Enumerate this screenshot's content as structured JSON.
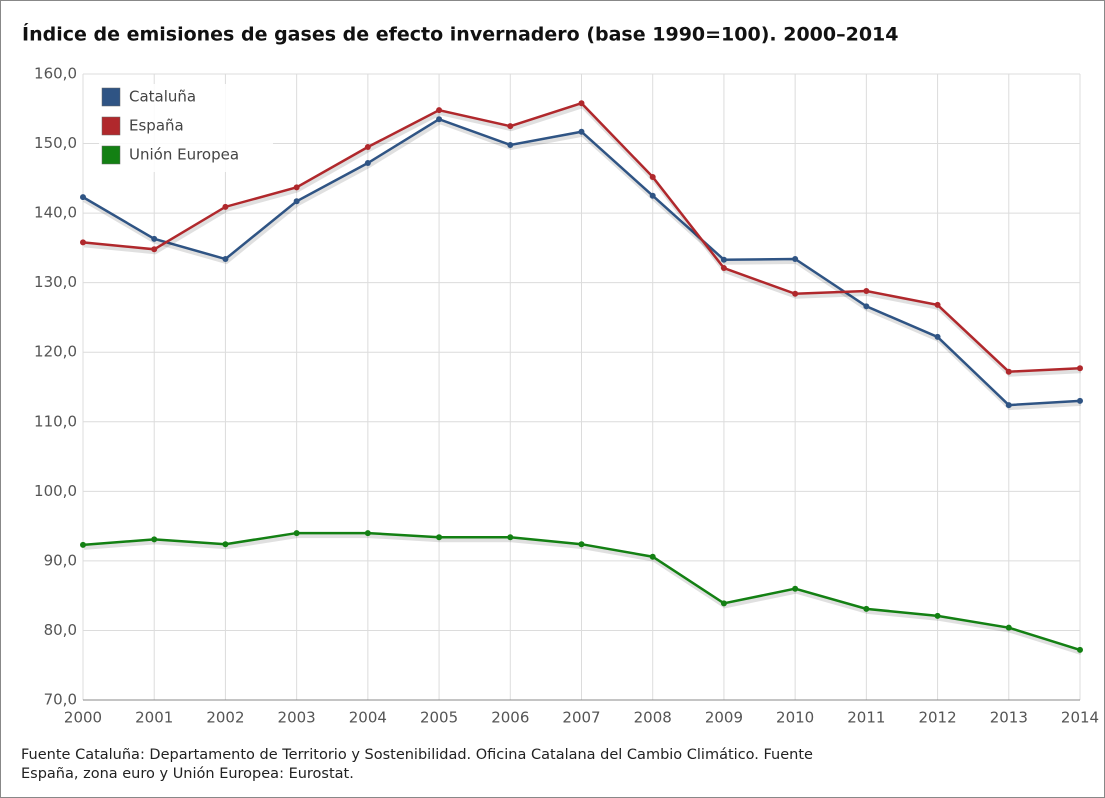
{
  "chart_data": {
    "type": "line",
    "title": "Índice de emisiones de gases de efecto invernadero (base 1990=100). 2000–2014",
    "categories": [
      "2000",
      "2001",
      "2002",
      "2003",
      "2004",
      "2005",
      "2006",
      "2007",
      "2008",
      "2009",
      "2010",
      "2011",
      "2012",
      "2013",
      "2014"
    ],
    "series": [
      {
        "name": "Cataluña",
        "color": "#2f5484",
        "values": [
          142.3,
          136.3,
          133.4,
          141.7,
          147.2,
          153.5,
          149.8,
          151.7,
          142.5,
          133.3,
          133.4,
          126.6,
          122.2,
          112.4,
          113.0
        ]
      },
      {
        "name": "España",
        "color": "#b0282c",
        "values": [
          135.8,
          134.8,
          140.9,
          143.7,
          149.5,
          154.8,
          152.5,
          155.8,
          145.2,
          132.1,
          128.4,
          128.8,
          126.8,
          117.2,
          117.7
        ]
      },
      {
        "name": "Unión Europea",
        "color": "#138013",
        "values": [
          92.3,
          93.1,
          92.4,
          94.0,
          94.0,
          93.4,
          93.4,
          92.4,
          90.6,
          83.9,
          86.0,
          83.1,
          82.1,
          80.4,
          77.2
        ]
      }
    ],
    "ylim": [
      70,
      160
    ],
    "yticks": [
      {
        "value": 70,
        "label": "70,0"
      },
      {
        "value": 80,
        "label": "80,0"
      },
      {
        "value": 90,
        "label": "90,0"
      },
      {
        "value": 100,
        "label": "100,0"
      },
      {
        "value": 110,
        "label": "110,0"
      },
      {
        "value": 120,
        "label": "120,0"
      },
      {
        "value": 130,
        "label": "130,0"
      },
      {
        "value": 140,
        "label": "140,0"
      },
      {
        "value": 150,
        "label": "150,0"
      },
      {
        "value": 160,
        "label": "160,0"
      }
    ],
    "grid": true,
    "legend": "upper left",
    "source": [
      "Fuente Cataluña: Departamento de Territorio y Sostenibilidad. Oficina Catalana del Cambio Climático. Fuente",
      "España, zona euro y Unión Europea: Eurostat."
    ]
  }
}
